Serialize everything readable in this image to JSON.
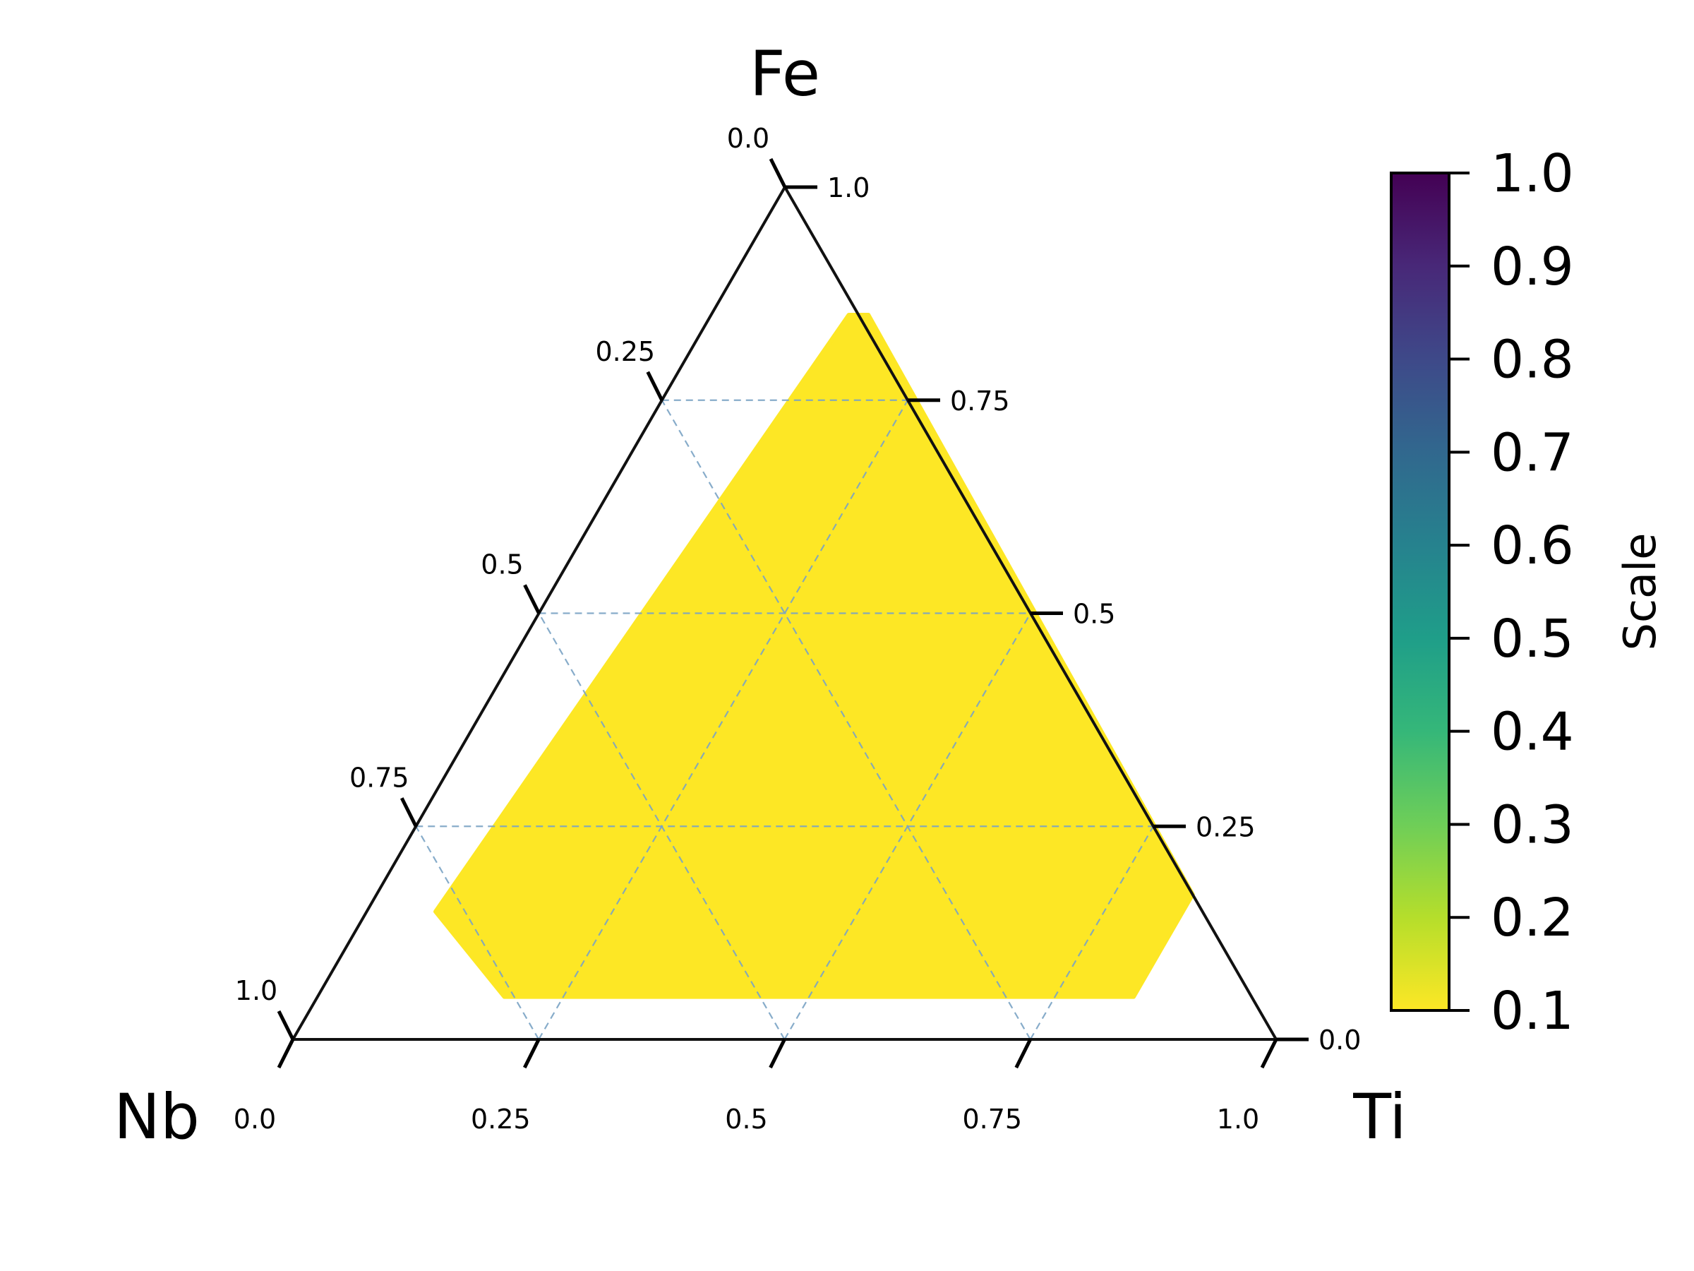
{
  "chart_data": {
    "type": "ternary",
    "vertices": {
      "top": "Fe",
      "left": "Nb",
      "right": "Ti"
    },
    "axes": {
      "bottom": {
        "ticks": [
          0.0,
          0.25,
          0.5,
          0.75,
          1.0
        ],
        "labels": [
          "0.0",
          "0.25",
          "0.5",
          "0.75",
          "1.0"
        ]
      },
      "right": {
        "ticks": [
          0.0,
          0.25,
          0.5,
          0.75,
          1.0
        ],
        "labels": [
          "0.0",
          "0.25",
          "0.5",
          "0.75",
          "1.0"
        ]
      },
      "left": {
        "ticks": [
          0.0,
          0.25,
          0.5,
          0.75,
          1.0
        ],
        "labels": [
          "0.0",
          "0.25",
          "0.5",
          "0.75",
          "1.0"
        ]
      }
    },
    "grid": true,
    "grid_lines": [
      0.25,
      0.5,
      0.75
    ],
    "region": {
      "description_points": [
        {
          "Fe": 0.85,
          "Ti": 0.14
        },
        {
          "Fe": 0.85,
          "Ti": 0.16
        },
        {
          "Fe": 0.17,
          "Ti": 0.83
        },
        {
          "Fe": 0.05,
          "Ti": 0.83
        },
        {
          "Fe": 0.05,
          "Ti": 0.19
        },
        {
          "Fe": 0.15,
          "Ti": 0.07
        }
      ],
      "value": 0.1,
      "color": "#fde725"
    },
    "colorbar": {
      "label": "Scale",
      "min": 0.1,
      "max": 1.0,
      "ticks": [
        0.1,
        0.2,
        0.3,
        0.4,
        0.5,
        0.6,
        0.7,
        0.8,
        0.9,
        1.0
      ],
      "tick_labels": [
        "0.1",
        "0.2",
        "0.3",
        "0.4",
        "0.5",
        "0.6",
        "0.7",
        "0.8",
        "0.9",
        "1.0"
      ],
      "colormap": "viridis_r",
      "colors": [
        "#fde725",
        "#b5de2b",
        "#6ece58",
        "#35b779",
        "#1f9e89",
        "#26828e",
        "#31688e",
        "#3e4989",
        "#482878",
        "#440154"
      ]
    }
  }
}
